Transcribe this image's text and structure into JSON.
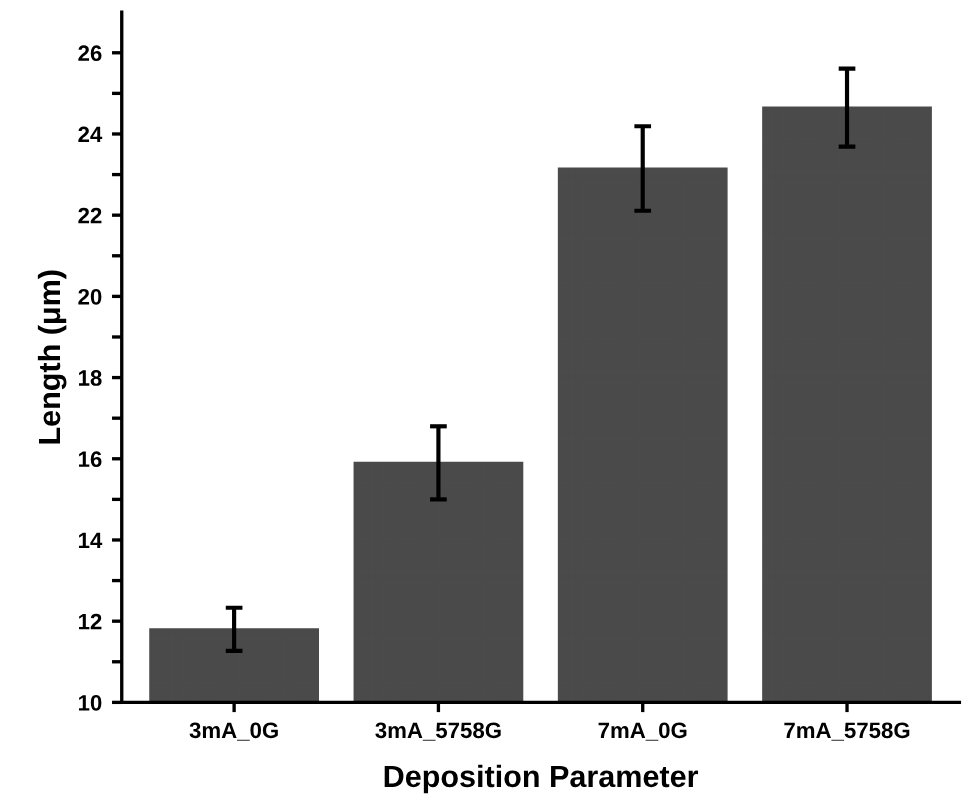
{
  "chart_data": {
    "type": "bar",
    "xlabel": "Deposition Parameter",
    "ylabel": "Length (μm)",
    "categories": [
      "3mA_0G",
      "3mA_5758G",
      "7mA_0G",
      "7mA_5758G"
    ],
    "values": [
      11.8,
      15.9,
      23.15,
      24.65
    ],
    "errors": [
      0.53,
      0.9,
      1.04,
      0.96
    ],
    "color": "#4a4a4a",
    "ylim": [
      10,
      27
    ],
    "yticks": [
      10,
      {
        "value": 11,
        "label": null
      },
      12,
      {
        "value": 13,
        "label": null
      },
      14,
      {
        "value": 15,
        "label": null
      },
      16,
      {
        "value": 17,
        "label": null
      },
      18,
      {
        "value": 19,
        "label": null
      },
      20,
      {
        "value": 21,
        "label": null
      },
      22,
      {
        "value": 23,
        "label": null
      },
      24,
      {
        "value": 25,
        "label": null
      },
      26
    ],
    "grid": false,
    "legend": false
  }
}
